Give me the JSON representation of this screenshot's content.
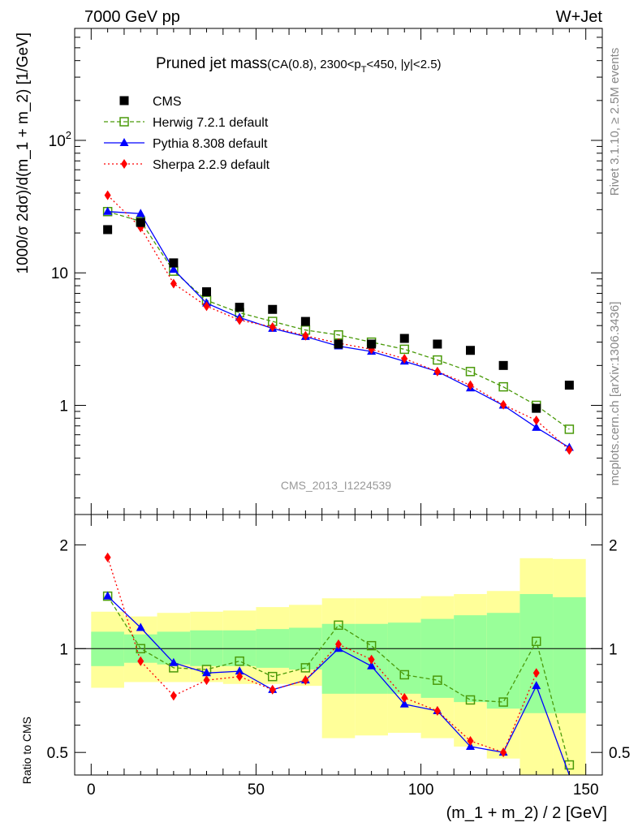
{
  "header": {
    "left": "7000 GeV pp",
    "right": "W+Jet"
  },
  "side_labels": {
    "rivet": "Rivet 3.1.10, ≥ 2.5M events",
    "mcplots": "mcplots.cern.ch [arXiv:1306.3436]"
  },
  "watermark": "CMS_2013_I1224539",
  "chart_data": [
    {
      "type": "line",
      "panel": "main",
      "title": "Pruned jet mass",
      "subtitle_parts": {
        "pre": "(CA(0.8), 2300<p",
        "sub": "T",
        "post": "<450, |y|<2.5)"
      },
      "ylabel": "1000/σ 2dσ)/d(m_1 + m_2) [1/GeV]",
      "xlabel": "(m_1 + m_2) / 2 [GeV]",
      "yscale": "log",
      "ylim": [
        0.15,
        700
      ],
      "xlim": [
        -5,
        155
      ],
      "y_ticks": [
        {
          "value": 1,
          "label": "1"
        },
        {
          "value": 10,
          "label": "10"
        },
        {
          "value": 100,
          "label": "10",
          "sup": "2"
        }
      ],
      "x": [
        5,
        15,
        25,
        35,
        45,
        55,
        65,
        75,
        85,
        95,
        105,
        115,
        125,
        135,
        145
      ],
      "series": [
        {
          "name": "CMS",
          "color": "#000000",
          "marker": "square",
          "line": "none",
          "values": [
            21.2,
            24.0,
            11.9,
            7.2,
            5.5,
            5.3,
            4.3,
            2.9,
            2.9,
            3.2,
            2.9,
            2.6,
            2.0,
            0.95,
            1.42
          ]
        },
        {
          "name": "Herwig 7.2.1 default",
          "color": "#4a9a0a",
          "marker": "open-square",
          "line": "dashed",
          "values": [
            29.0,
            24.5,
            10.3,
            6.2,
            5.0,
            4.3,
            3.7,
            3.4,
            3.0,
            2.65,
            2.2,
            1.8,
            1.38,
            1.0,
            0.66
          ]
        },
        {
          "name": "Pythia 8.308 default",
          "color": "#0000ff",
          "marker": "triangle",
          "line": "solid",
          "values": [
            29.0,
            28.0,
            10.6,
            5.9,
            4.6,
            3.8,
            3.3,
            2.8,
            2.55,
            2.15,
            1.8,
            1.35,
            1.0,
            0.68,
            0.48
          ]
        },
        {
          "name": "Sherpa 2.2.9 default",
          "color": "#ff0000",
          "marker": "diamond",
          "line": "dotted",
          "values": [
            38.5,
            22.0,
            8.3,
            5.6,
            4.4,
            3.9,
            3.35,
            2.95,
            2.65,
            2.25,
            1.8,
            1.42,
            1.01,
            0.77,
            0.46
          ]
        }
      ],
      "legend": "top-left"
    },
    {
      "type": "line",
      "panel": "ratio",
      "ylabel": "Ratio to CMS",
      "yscale": "log",
      "ylim": [
        0.43,
        2.45
      ],
      "xlim": [
        -5,
        155
      ],
      "y_ticks": [
        {
          "value": 0.5,
          "label": "0.5"
        },
        {
          "value": 1,
          "label": "1"
        },
        {
          "value": 2,
          "label": "2"
        }
      ],
      "x_ticks": [
        0,
        50,
        100,
        150
      ],
      "reference": 1,
      "bands": {
        "colors": {
          "outer": "#ffff99",
          "inner": "#99ff99"
        },
        "bins": [
          {
            "lo": 0,
            "hi": 10,
            "outer": [
              0.77,
              1.28
            ],
            "inner": [
              0.89,
              1.12
            ]
          },
          {
            "lo": 10,
            "hi": 20,
            "outer": [
              0.8,
              1.24
            ],
            "inner": [
              0.91,
              1.1
            ]
          },
          {
            "lo": 20,
            "hi": 30,
            "outer": [
              0.8,
              1.27
            ],
            "inner": [
              0.9,
              1.12
            ]
          },
          {
            "lo": 30,
            "hi": 40,
            "outer": [
              0.8,
              1.28
            ],
            "inner": [
              0.89,
              1.13
            ]
          },
          {
            "lo": 40,
            "hi": 50,
            "outer": [
              0.79,
              1.29
            ],
            "inner": [
              0.89,
              1.13
            ]
          },
          {
            "lo": 50,
            "hi": 60,
            "outer": [
              0.79,
              1.32
            ],
            "inner": [
              0.88,
              1.14
            ]
          },
          {
            "lo": 60,
            "hi": 70,
            "outer": [
              0.78,
              1.34
            ],
            "inner": [
              0.87,
              1.15
            ]
          },
          {
            "lo": 70,
            "hi": 80,
            "outer": [
              0.55,
              1.4
            ],
            "inner": [
              0.74,
              1.18
            ]
          },
          {
            "lo": 80,
            "hi": 90,
            "outer": [
              0.56,
              1.4
            ],
            "inner": [
              0.74,
              1.18
            ]
          },
          {
            "lo": 90,
            "hi": 100,
            "outer": [
              0.57,
              1.4
            ],
            "inner": [
              0.74,
              1.19
            ]
          },
          {
            "lo": 100,
            "hi": 110,
            "outer": [
              0.55,
              1.42
            ],
            "inner": [
              0.72,
              1.22
            ]
          },
          {
            "lo": 110,
            "hi": 120,
            "outer": [
              0.52,
              1.44
            ],
            "inner": [
              0.7,
              1.25
            ]
          },
          {
            "lo": 120,
            "hi": 130,
            "outer": [
              0.48,
              1.47
            ],
            "inner": [
              0.67,
              1.27
            ]
          },
          {
            "lo": 130,
            "hi": 140,
            "outer": [
              0.43,
              1.83
            ],
            "inner": [
              0.65,
              1.44
            ]
          },
          {
            "lo": 140,
            "hi": 150,
            "outer": [
              0.43,
              1.82
            ],
            "inner": [
              0.65,
              1.41
            ]
          }
        ]
      },
      "x": [
        5,
        15,
        25,
        35,
        45,
        55,
        65,
        75,
        85,
        95,
        105,
        115,
        125,
        135,
        145
      ],
      "series": [
        {
          "name": "Herwig 7.2.1 default",
          "color": "#4a9a0a",
          "marker": "open-square",
          "line": "dashed",
          "values": [
            1.42,
            1.0,
            0.88,
            0.87,
            0.92,
            0.83,
            0.88,
            1.17,
            1.02,
            0.84,
            0.81,
            0.71,
            0.7,
            1.05,
            0.46
          ]
        },
        {
          "name": "Pythia 8.308 default",
          "color": "#0000ff",
          "marker": "triangle",
          "line": "solid",
          "values": [
            1.42,
            1.15,
            0.91,
            0.85,
            0.86,
            0.76,
            0.81,
            1.0,
            0.89,
            0.69,
            0.66,
            0.52,
            0.5,
            0.78,
            0.33
          ]
        },
        {
          "name": "Sherpa 2.2.9 default",
          "color": "#ff0000",
          "marker": "diamond",
          "line": "dotted",
          "values": [
            1.84,
            0.92,
            0.73,
            0.81,
            0.83,
            0.76,
            0.81,
            1.03,
            0.93,
            0.72,
            0.66,
            0.54,
            0.5,
            0.85,
            null
          ]
        }
      ]
    }
  ]
}
